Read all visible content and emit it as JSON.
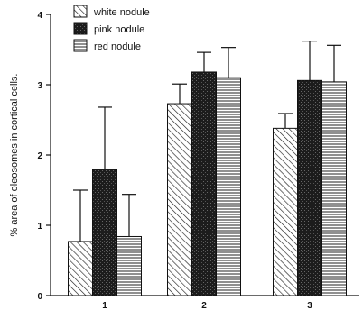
{
  "chart_data": {
    "type": "bar",
    "categories": [
      "1",
      "2",
      "3"
    ],
    "ylabel": "% area of oleosomes in cortical cells.",
    "xlabel": "",
    "ylim": [
      0,
      4
    ],
    "yticks": [
      "0",
      "1",
      "2",
      "3",
      "4"
    ],
    "legend_position": "top-left",
    "grid": false,
    "series": [
      {
        "name": "white nodule",
        "pattern": "diagonal-hatch",
        "color": "#ffffff",
        "values": [
          0.77,
          2.73,
          2.38
        ],
        "errors": [
          0.73,
          0.28,
          0.21
        ]
      },
      {
        "name": "pink nodule",
        "pattern": "dark-stipple",
        "color": "#1a1a1a",
        "values": [
          1.8,
          3.18,
          3.06
        ],
        "errors": [
          0.88,
          0.28,
          0.56
        ]
      },
      {
        "name": "red nodule",
        "pattern": "horizontal-lines",
        "color": "#ffffff",
        "values": [
          0.84,
          3.1,
          3.04
        ],
        "errors": [
          0.6,
          0.43,
          0.52
        ]
      }
    ]
  }
}
